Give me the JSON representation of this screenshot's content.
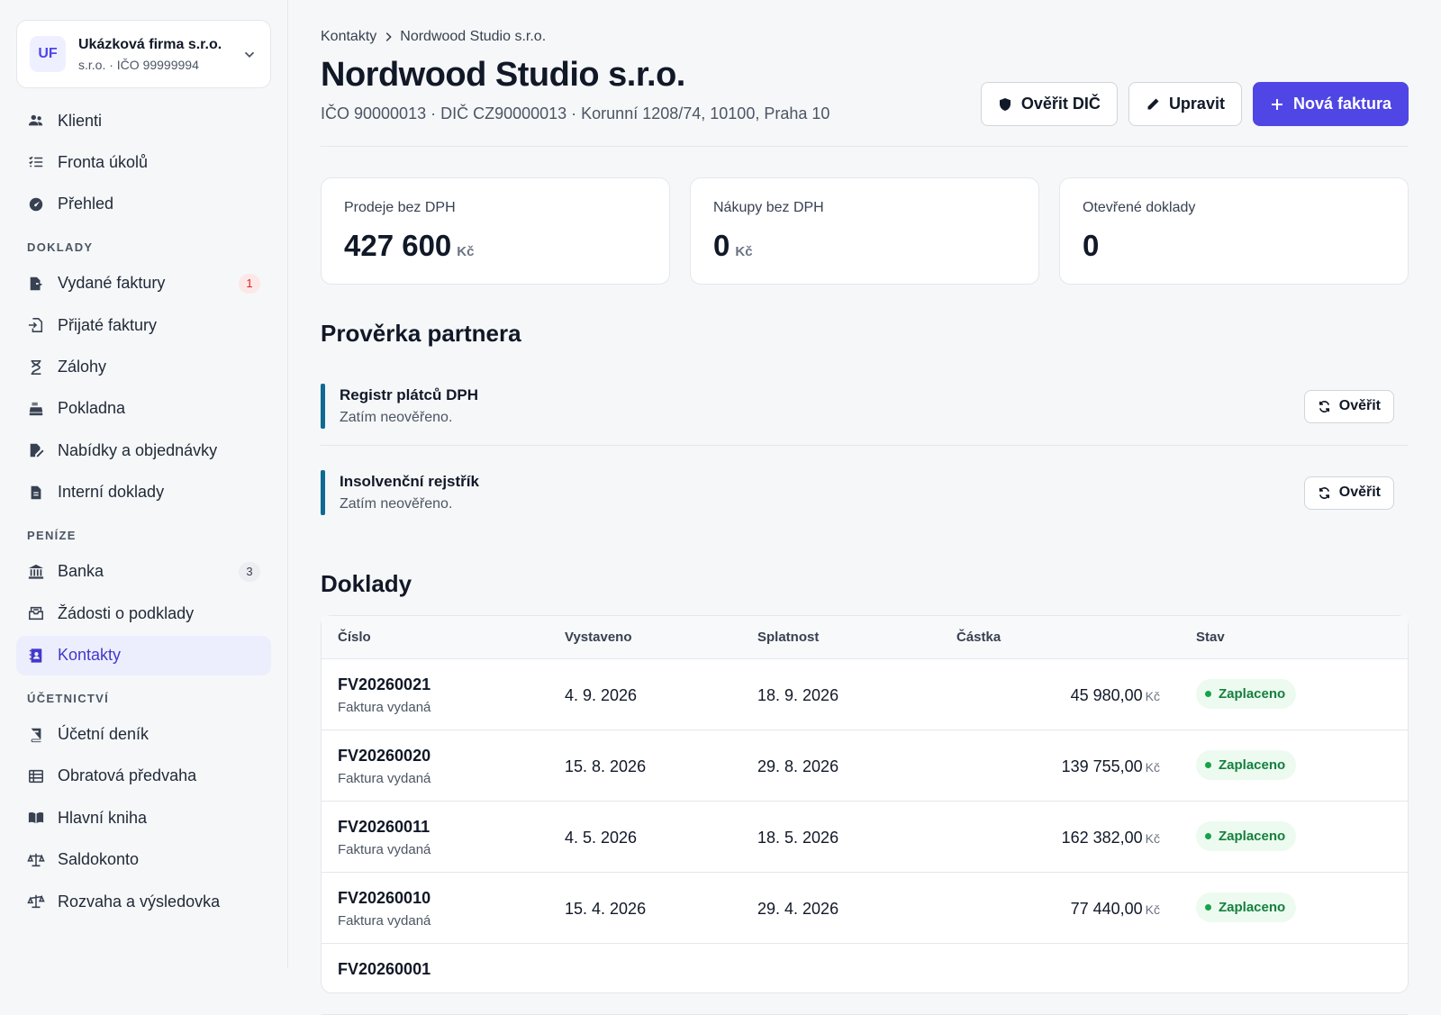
{
  "company": {
    "initials": "UF",
    "name": "Ukázková firma s.r.o.",
    "sub": "s.r.o. · IČO 99999994"
  },
  "nav_top": [
    {
      "label": "Klienti",
      "icon": "users-icon"
    },
    {
      "label": "Fronta úkolů",
      "icon": "task-list-icon"
    },
    {
      "label": "Přehled",
      "icon": "dashboard-gauge-icon"
    }
  ],
  "sections": {
    "doklady": "DOKLADY",
    "penize": "PENÍZE",
    "ucetnictvi": "ÚČETNICTVÍ"
  },
  "nav_doklady": [
    {
      "label": "Vydané faktury",
      "icon": "invoice-out-icon",
      "badge": "1"
    },
    {
      "label": "Přijaté faktury",
      "icon": "invoice-in-icon"
    },
    {
      "label": "Zálohy",
      "icon": "hourglass-icon"
    },
    {
      "label": "Pokladna",
      "icon": "cash-register-icon"
    },
    {
      "label": "Nabídky a objednávky",
      "icon": "document-edit-icon"
    },
    {
      "label": "Interní doklady",
      "icon": "document-icon"
    }
  ],
  "nav_penize": [
    {
      "label": "Banka",
      "icon": "bank-icon",
      "badge": "3"
    },
    {
      "label": "Žádosti o podklady",
      "icon": "inbox-request-icon"
    },
    {
      "label": "Kontakty",
      "icon": "contact-card-icon",
      "active": true
    }
  ],
  "nav_ucetnictvi": [
    {
      "label": "Účetní deník",
      "icon": "journal-book-icon"
    },
    {
      "label": "Obratová předvaha",
      "icon": "table-icon"
    },
    {
      "label": "Hlavní kniha",
      "icon": "open-book-icon"
    },
    {
      "label": "Saldokonto",
      "icon": "scale-icon"
    },
    {
      "label": "Rozvaha a výsledovka",
      "icon": "balance-scale-icon"
    }
  ],
  "breadcrumb": {
    "parent": "Kontakty",
    "current": "Nordwood Studio s.r.o."
  },
  "page": {
    "title": "Nordwood Studio s.r.o.",
    "subtitle": "IČO 90000013 · DIČ CZ90000013 · Korunní 1208/74, 10100, Praha 10"
  },
  "actions": {
    "verify_vat": "Ověřit DIČ",
    "edit": "Upravit",
    "new_invoice": "Nová faktura"
  },
  "stats": [
    {
      "label": "Prodeje bez DPH",
      "value": "427 600",
      "unit": "Kč"
    },
    {
      "label": "Nákupy bez DPH",
      "value": "0",
      "unit": "Kč"
    },
    {
      "label": "Otevřené doklady",
      "value": "0",
      "unit": ""
    }
  ],
  "partner_check": {
    "title": "Prověrka partnera",
    "rows": [
      {
        "title": "Registr plátců DPH",
        "status": "Zatím neověřeno.",
        "button": "Ověřit"
      },
      {
        "title": "Insolvenční rejstřík",
        "status": "Zatím neověřeno.",
        "button": "Ověřit"
      }
    ]
  },
  "documents": {
    "title": "Doklady",
    "columns": [
      "Číslo",
      "Vystaveno",
      "Splatnost",
      "Částka",
      "Stav"
    ],
    "currency": "Kč",
    "rows": [
      {
        "number": "FV20260021",
        "type": "Faktura vydaná",
        "issued": "4. 9. 2026",
        "due": "18. 9. 2026",
        "amount": "45 980,00",
        "status": "Zaplaceno"
      },
      {
        "number": "FV20260020",
        "type": "Faktura vydaná",
        "issued": "15. 8. 2026",
        "due": "29. 8. 2026",
        "amount": "139 755,00",
        "status": "Zaplaceno"
      },
      {
        "number": "FV20260011",
        "type": "Faktura vydaná",
        "issued": "4. 5. 2026",
        "due": "18. 5. 2026",
        "amount": "162 382,00",
        "status": "Zaplaceno"
      },
      {
        "number": "FV20260010",
        "type": "Faktura vydaná",
        "issued": "15. 4. 2026",
        "due": "29. 4. 2026",
        "amount": "77 440,00",
        "status": "Zaplaceno"
      },
      {
        "number": "FV20260001",
        "type": "",
        "issued": "",
        "due": "",
        "amount": "",
        "status": ""
      }
    ]
  },
  "colors": {
    "accent": "#4f46e5",
    "active_nav_bg": "#eceefe",
    "check_bar": "#0e6b91",
    "status_paid": "#15803d"
  }
}
